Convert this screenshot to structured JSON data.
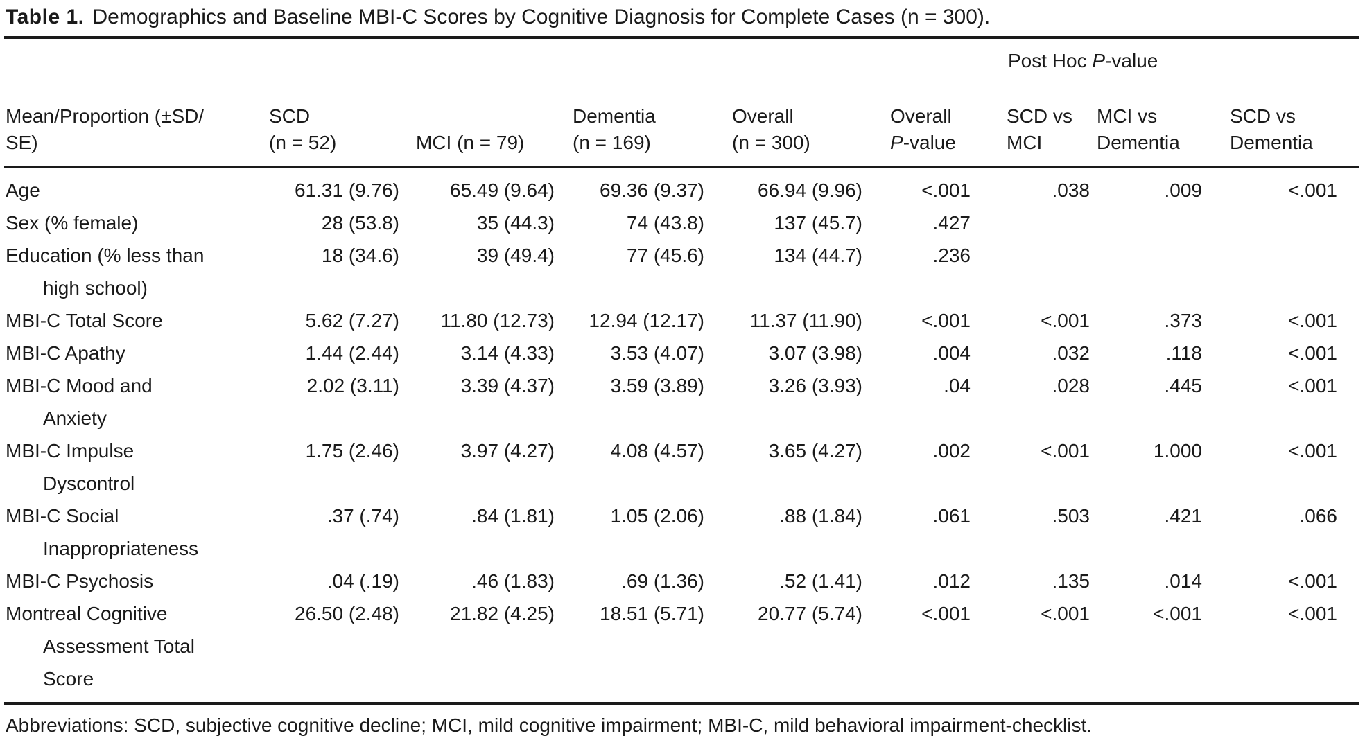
{
  "colors": {
    "text": "#1a1a1a",
    "rule": "#1a1a1a",
    "background": "#ffffff"
  },
  "title": {
    "label": "Table 1.",
    "text": "Demographics and Baseline MBI-C Scores by Cognitive Diagnosis for Complete Cases (n = 300)."
  },
  "header": {
    "stub_line1": "Mean/Proportion (±SD/",
    "stub_line2": "SE)",
    "post_hoc": {
      "prefix": "Post Hoc ",
      "p": "P",
      "suffix": "-value"
    },
    "scd_line1": "SCD",
    "scd_line2": "(n = 52)",
    "mci_line2": "MCI (n = 79)",
    "dementia_line1": "Dementia",
    "dementia_line2": "(n = 169)",
    "overall_line1": "Overall",
    "overall_line2": "(n = 300)",
    "overall_p_line1": "Overall",
    "overall_p_p": "P",
    "overall_p_suffix": "-value",
    "scd_mci_line1": "SCD vs",
    "scd_mci_line2": "MCI",
    "mci_dem_line1": "MCI vs",
    "mci_dem_line2": "Dementia",
    "scd_dem_line1": "SCD vs",
    "scd_dem_line2": "Dementia"
  },
  "rows": [
    {
      "label_lines": [
        "Age"
      ],
      "values": [
        "61.31 (9.76)",
        "65.49 (9.64)",
        "69.36 (9.37)",
        "66.94 (9.96)",
        "<.001",
        ".038",
        ".009",
        "<.001"
      ]
    },
    {
      "label_lines": [
        "Sex (% female)"
      ],
      "values": [
        "28 (53.8)",
        "35 (44.3)",
        "74 (43.8)",
        "137 (45.7)",
        ".427",
        "",
        "",
        ""
      ]
    },
    {
      "label_lines": [
        "Education (% less than",
        "high school)"
      ],
      "values": [
        "18 (34.6)",
        "39 (49.4)",
        "77 (45.6)",
        "134 (44.7)",
        ".236",
        "",
        "",
        ""
      ]
    },
    {
      "label_lines": [
        "MBI-C Total Score"
      ],
      "values": [
        "5.62 (7.27)",
        "11.80 (12.73)",
        "12.94 (12.17)",
        "11.37 (11.90)",
        "<.001",
        "<.001",
        ".373",
        "<.001"
      ]
    },
    {
      "label_lines": [
        "MBI-C Apathy"
      ],
      "values": [
        "1.44 (2.44)",
        "3.14 (4.33)",
        "3.53 (4.07)",
        "3.07 (3.98)",
        ".004",
        ".032",
        ".118",
        "<.001"
      ]
    },
    {
      "label_lines": [
        "MBI-C Mood and",
        "Anxiety"
      ],
      "values": [
        "2.02 (3.11)",
        "3.39 (4.37)",
        "3.59 (3.89)",
        "3.26 (3.93)",
        ".04",
        ".028",
        ".445",
        "<.001"
      ]
    },
    {
      "label_lines": [
        "MBI-C Impulse",
        "Dyscontrol"
      ],
      "values": [
        "1.75 (2.46)",
        "3.97 (4.27)",
        "4.08 (4.57)",
        "3.65 (4.27)",
        ".002",
        "<.001",
        "1.000",
        "<.001"
      ]
    },
    {
      "label_lines": [
        "MBI-C Social",
        "Inappropriateness"
      ],
      "values": [
        ".37 (.74)",
        ".84 (1.81)",
        "1.05 (2.06)",
        ".88 (1.84)",
        ".061",
        ".503",
        ".421",
        ".066"
      ]
    },
    {
      "label_lines": [
        "MBI-C Psychosis"
      ],
      "values": [
        ".04 (.19)",
        ".46 (1.83)",
        ".69 (1.36)",
        ".52 (1.41)",
        ".012",
        ".135",
        ".014",
        "<.001"
      ]
    },
    {
      "label_lines": [
        "Montreal Cognitive",
        "Assessment Total",
        "Score"
      ],
      "values": [
        "26.50 (2.48)",
        "21.82 (4.25)",
        "18.51 (5.71)",
        "20.77 (5.74)",
        "<.001",
        "<.001",
        "<.001",
        "<.001"
      ]
    }
  ],
  "footnote": "Abbreviations: SCD, subjective cognitive decline; MCI, mild cognitive impairment; MBI-C, mild behavioral impairment-checklist."
}
